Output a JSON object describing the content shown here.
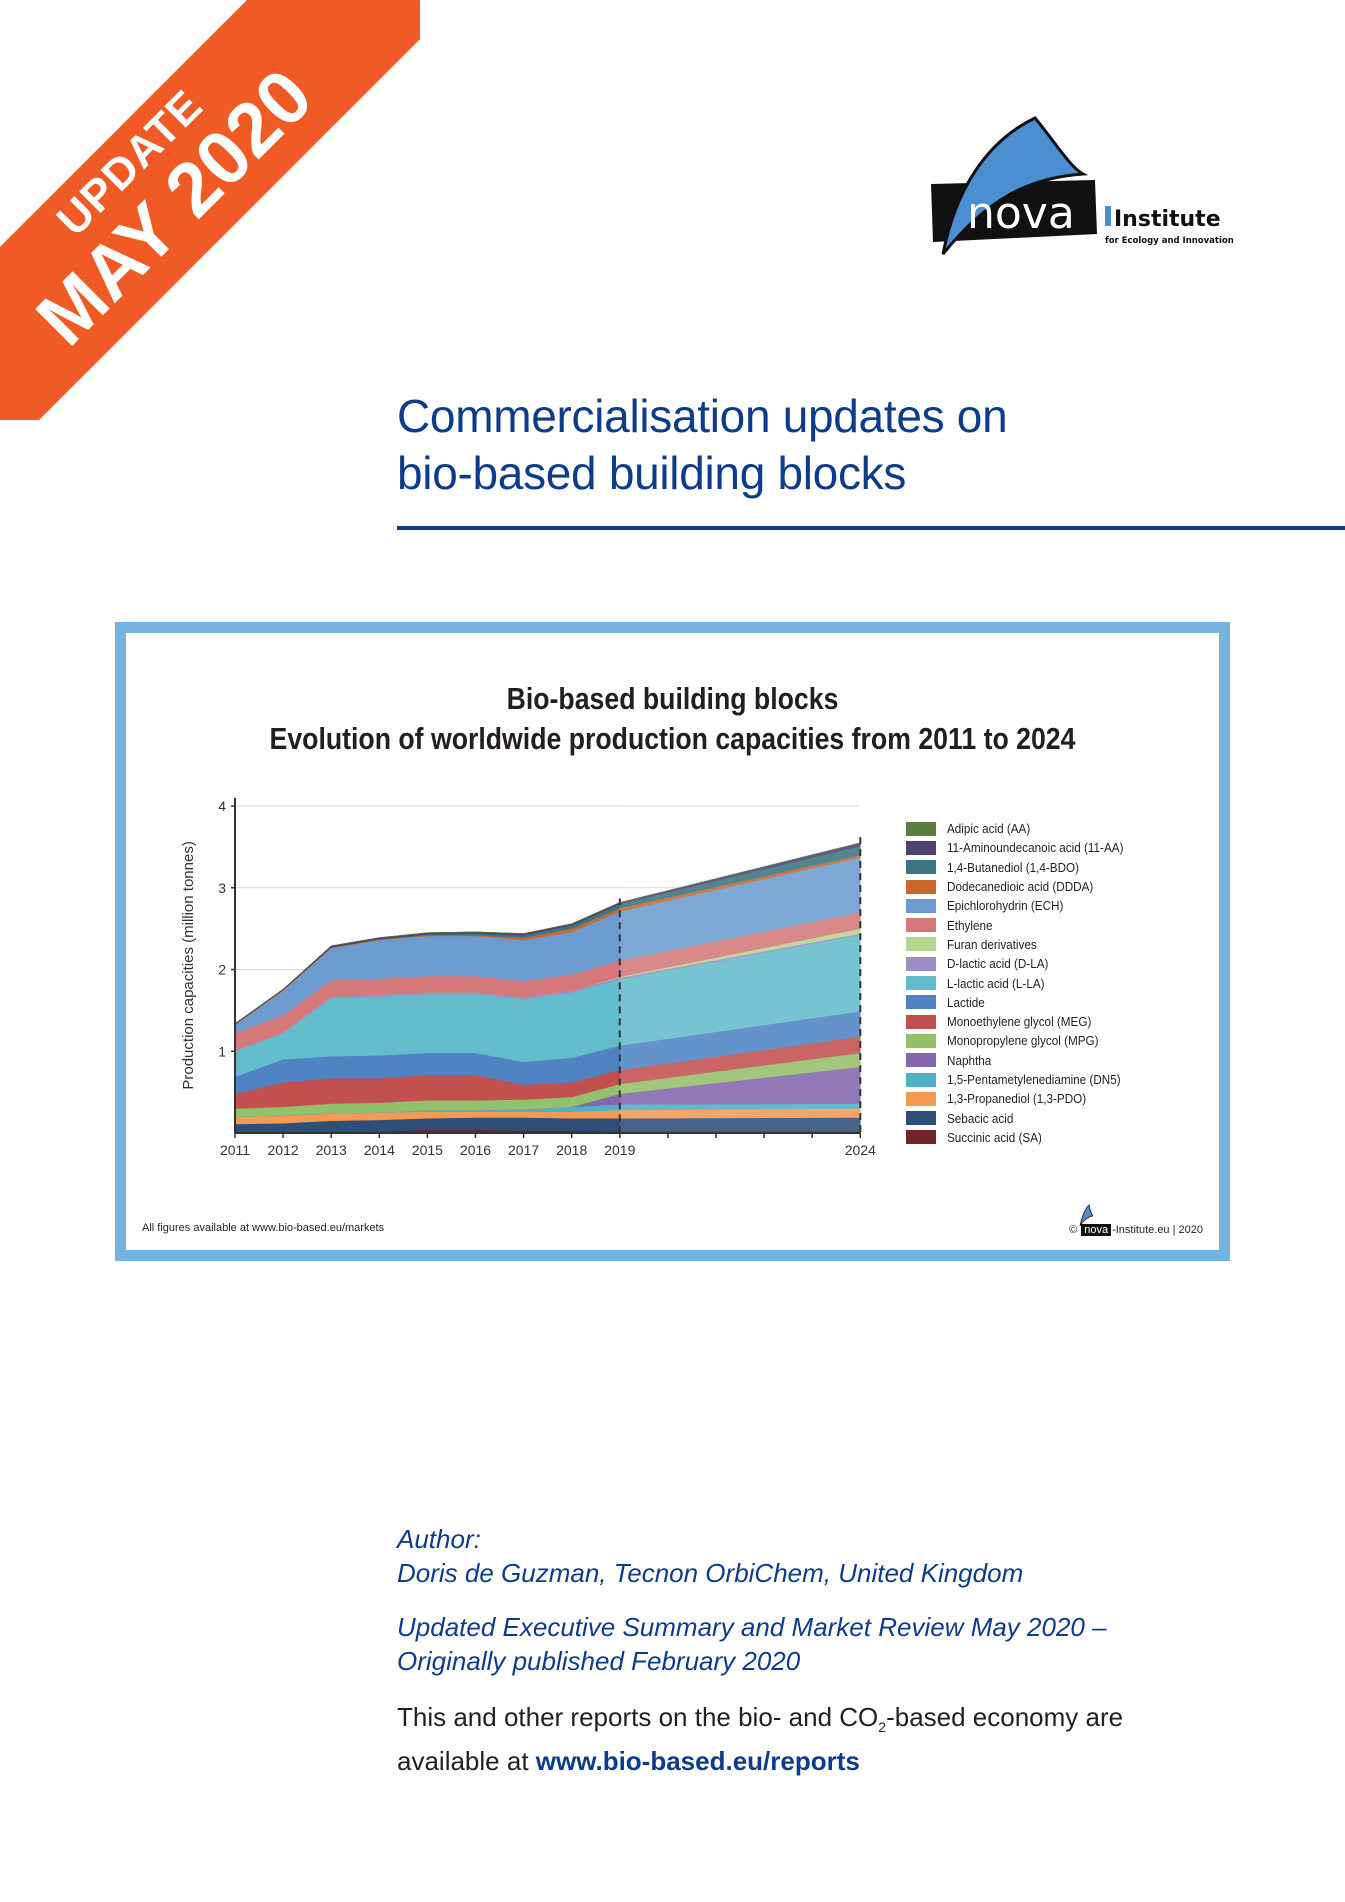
{
  "ribbon": {
    "line1": "UPDATE",
    "line2": "MAY 2020",
    "color": "#f05a24"
  },
  "logo": {
    "wordmark": "nova",
    "institute": "Institute",
    "tagline": "for Ecology and Innovation"
  },
  "document": {
    "title_line1": "Commercialisation updates on",
    "title_line2": "bio-based building blocks",
    "title_color": "#0d3c8c"
  },
  "figure": {
    "title_line1": "Bio-based building blocks",
    "title_line2": "Evolution of worldwide production capacities from 2011 to 2024",
    "footer_left": "All figures available at www.bio-based.eu/markets",
    "footer_right_prefix": "©",
    "footer_right_logo": "nova",
    "footer_right_suffix": "-Institute.eu | 2020",
    "frame_color": "#74b3e2"
  },
  "chart_data": {
    "type": "area",
    "stacked": true,
    "title": "Bio-based building blocks — Evolution of worldwide production capacities from 2011 to 2024",
    "xlabel": "",
    "ylabel": "Production capacities (million tonnes)",
    "ylim": [
      0,
      4
    ],
    "yticks": [
      1,
      2,
      3,
      4
    ],
    "grid": true,
    "legend_position": "right",
    "forecast_marker_years": [
      2019,
      2024
    ],
    "x": [
      2011,
      2012,
      2013,
      2014,
      2015,
      2016,
      2017,
      2018,
      2019,
      2024
    ],
    "x_tick_labels": [
      "2011",
      "2012",
      "2013",
      "2014",
      "2015",
      "2016",
      "2017",
      "2018",
      "2019",
      "2024"
    ],
    "series": [
      {
        "name": "Succinic acid (SA)",
        "color": "#6e2429",
        "values": [
          0.0,
          0.0,
          0.01,
          0.02,
          0.04,
          0.04,
          0.03,
          0.03,
          0.02,
          0.02
        ]
      },
      {
        "name": "Sebacic acid",
        "color": "#2e4f78",
        "values": [
          0.11,
          0.12,
          0.14,
          0.14,
          0.14,
          0.15,
          0.16,
          0.15,
          0.16,
          0.17
        ]
      },
      {
        "name": "1,3-Propanediol (1,3-PDO)",
        "color": "#f49a52",
        "values": [
          0.09,
          0.09,
          0.09,
          0.09,
          0.08,
          0.07,
          0.07,
          0.08,
          0.1,
          0.11
        ]
      },
      {
        "name": "1,5-Pentametylenediamine (DN5)",
        "color": "#4fb0c6",
        "values": [
          0.0,
          0.0,
          0.0,
          0.0,
          0.02,
          0.02,
          0.03,
          0.06,
          0.07,
          0.06
        ]
      },
      {
        "name": "Naphtha",
        "color": "#8566ac",
        "values": [
          0.0,
          0.0,
          0.0,
          0.0,
          0.0,
          0.0,
          0.0,
          0.0,
          0.13,
          0.45
        ]
      },
      {
        "name": "Monopropylene glycol (MPG)",
        "color": "#93c06a",
        "values": [
          0.1,
          0.11,
          0.12,
          0.12,
          0.12,
          0.12,
          0.12,
          0.12,
          0.12,
          0.17
        ]
      },
      {
        "name": "Monoethylene glycol (MEG)",
        "color": "#c2504f",
        "values": [
          0.18,
          0.3,
          0.31,
          0.3,
          0.31,
          0.31,
          0.18,
          0.18,
          0.17,
          0.2
        ]
      },
      {
        "name": "Lactide",
        "color": "#4f83c3",
        "values": [
          0.21,
          0.28,
          0.27,
          0.28,
          0.27,
          0.27,
          0.28,
          0.3,
          0.3,
          0.31
        ]
      },
      {
        "name": "L-lactic acid (L-LA)",
        "color": "#63bccc",
        "values": [
          0.31,
          0.32,
          0.71,
          0.72,
          0.72,
          0.72,
          0.77,
          0.8,
          0.81,
          0.93
        ]
      },
      {
        "name": "D-lactic acid (D-LA)",
        "color": "#9d8cc7",
        "values": [
          0.01,
          0.01,
          0.02,
          0.02,
          0.02,
          0.02,
          0.02,
          0.02,
          0.02,
          0.02
        ]
      },
      {
        "name": "Furan derivatives",
        "color": "#b5d58e",
        "values": [
          0.0,
          0.0,
          0.0,
          0.0,
          0.0,
          0.0,
          0.0,
          0.0,
          0.01,
          0.06
        ]
      },
      {
        "name": "Ethylene",
        "color": "#d4787a",
        "values": [
          0.21,
          0.21,
          0.2,
          0.2,
          0.2,
          0.2,
          0.2,
          0.2,
          0.2,
          0.2
        ]
      },
      {
        "name": "Epichlorohydrin (ECH)",
        "color": "#6b9bcf",
        "values": [
          0.1,
          0.3,
          0.39,
          0.47,
          0.49,
          0.49,
          0.5,
          0.52,
          0.6,
          0.67
        ]
      },
      {
        "name": "Dodecanedioic acid (DDDA)",
        "color": "#c8692b",
        "values": [
          0.01,
          0.01,
          0.01,
          0.01,
          0.01,
          0.01,
          0.03,
          0.04,
          0.04,
          0.03
        ]
      },
      {
        "name": "1,4-Butanediol (1,4-BDO)",
        "color": "#3b7583",
        "values": [
          0.0,
          0.0,
          0.0,
          0.0,
          0.01,
          0.02,
          0.03,
          0.04,
          0.05,
          0.11
        ]
      },
      {
        "name": "11-Aminoundecanoic acid (11-AA)",
        "color": "#4e4270",
        "values": [
          0.01,
          0.01,
          0.02,
          0.02,
          0.02,
          0.02,
          0.02,
          0.02,
          0.02,
          0.04
        ]
      },
      {
        "name": "Adipic acid (AA)",
        "color": "#5b7f3e",
        "values": [
          0.0,
          0.0,
          0.0,
          0.0,
          0.0,
          0.0,
          0.0,
          0.0,
          0.0,
          0.0
        ]
      }
    ],
    "legend_order": [
      "Adipic acid (AA)",
      "11-Aminoundecanoic acid (11-AA)",
      "1,4-Butanediol (1,4-BDO)",
      "Dodecanedioic acid (DDDA)",
      "Epichlorohydrin (ECH)",
      "Ethylene",
      "Furan derivatives",
      "D-lactic acid (D-LA)",
      "L-lactic acid (L-LA)",
      "Lactide",
      "Monoethylene glycol (MEG)",
      "Monopropylene glycol (MPG)",
      "Naphtha",
      "1,5-Pentametylenediamine (DN5)",
      "1,3-Propanediol (1,3-PDO)",
      "Sebacic acid",
      "Succinic acid (SA)"
    ]
  },
  "author": {
    "label": "Author:",
    "name": "Doris de Guzman, Tecnon OrbiChem, United Kingdom",
    "edition_line1": "Updated Executive Summary and Market Review May 2020 –",
    "edition_line2": "Originally published February 2020"
  },
  "reports": {
    "text_before_sub": "This and other reports on the bio- and CO",
    "sub": "2",
    "text_after_sub": "-based economy are",
    "line2_prefix": "available at ",
    "link": "www.bio-based.eu/reports"
  }
}
